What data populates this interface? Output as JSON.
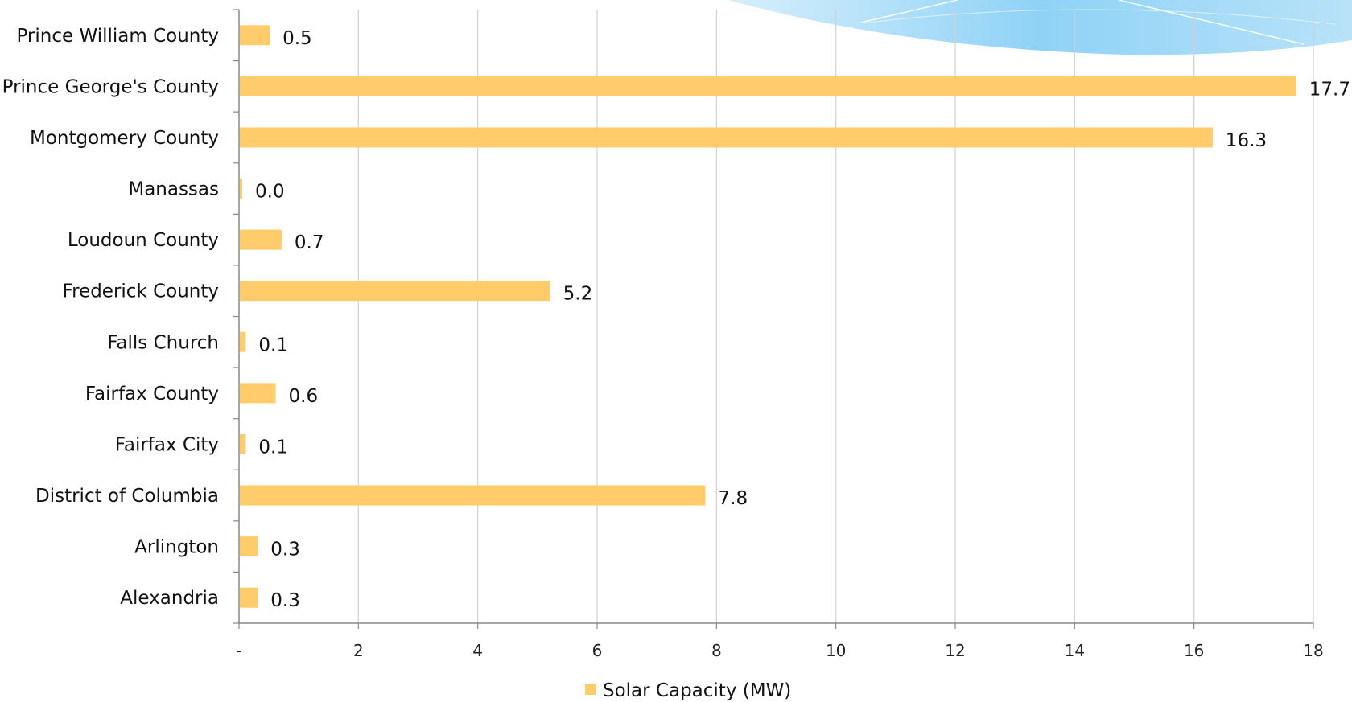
{
  "chart_data": {
    "type": "bar",
    "orientation": "horizontal",
    "categories": [
      "Prince William County",
      "Prince George's County",
      "Montgomery County",
      "Manassas",
      "Loudoun County",
      "Frederick County",
      "Falls Church",
      "Fairfax County",
      "Fairfax City",
      "District of Columbia",
      "Arlington",
      "Alexandria"
    ],
    "series": [
      {
        "name": "Solar Capacity (MW)",
        "values": [
          0.5,
          17.7,
          16.3,
          0.0,
          0.7,
          5.2,
          0.1,
          0.6,
          0.1,
          7.8,
          0.3,
          0.3
        ],
        "data_labels": [
          "0.5",
          "17.7",
          "16.3",
          "0.0",
          "0.7",
          "5.2",
          "0.1",
          "0.6",
          "0.1",
          "7.8",
          "0.3",
          "0.3"
        ],
        "color": "#ffcb6b"
      }
    ],
    "x_ticks": [
      "-",
      "2",
      "4",
      "6",
      "8",
      "10",
      "12",
      "14",
      "16",
      "18"
    ],
    "xlim": [
      0,
      18
    ],
    "grid": "vertical",
    "legend": "bottom",
    "gridline_color": "#d0d0d0",
    "axis_color": "#888888",
    "decoration_color": "#7cc8f4"
  }
}
